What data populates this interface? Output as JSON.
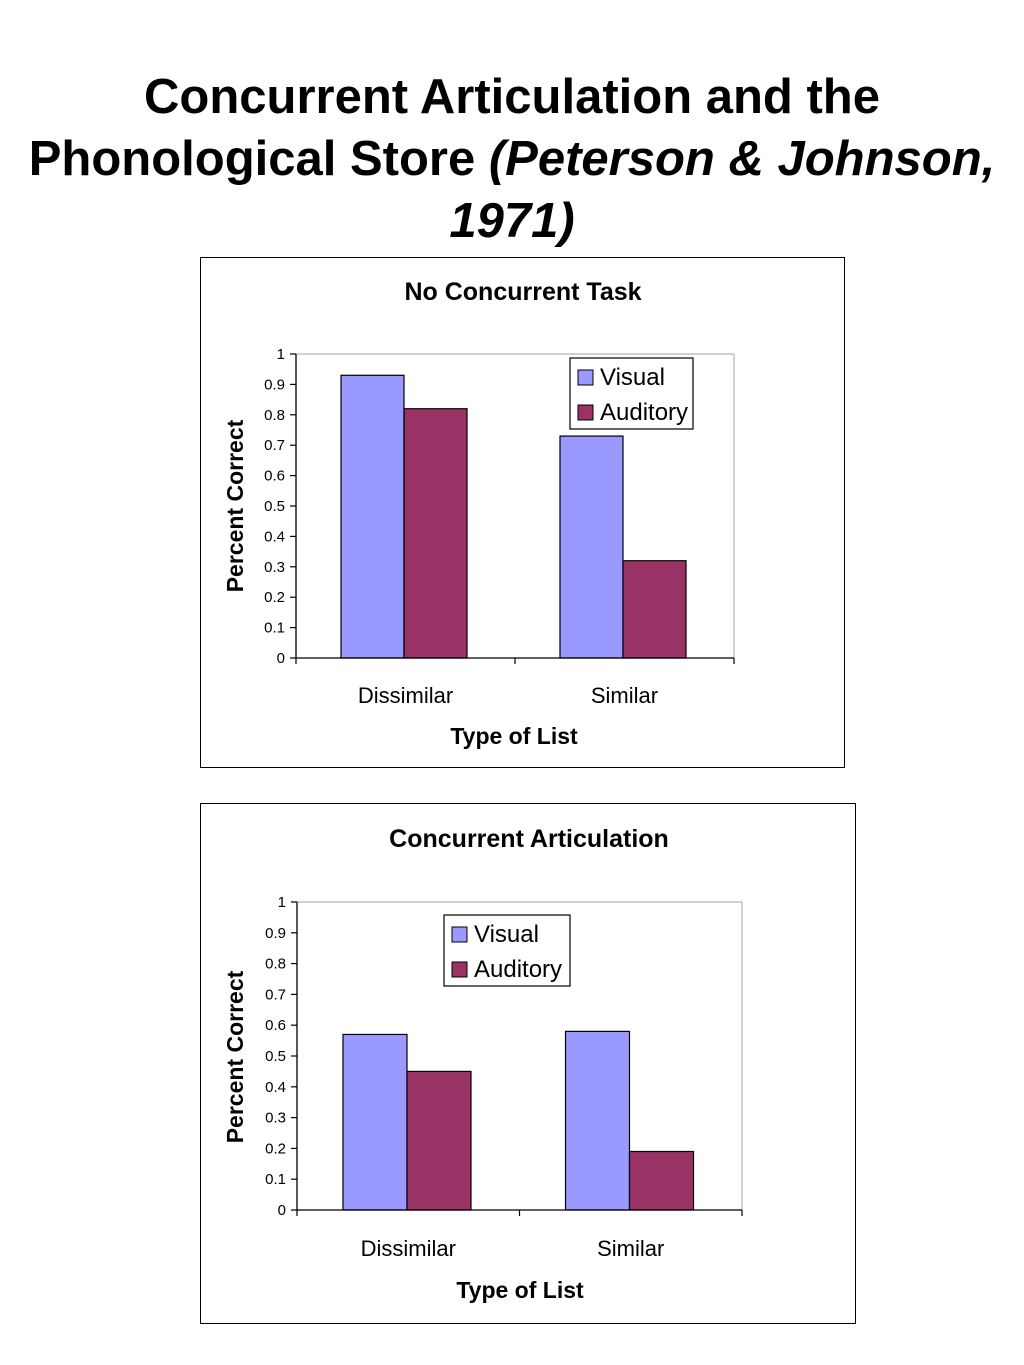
{
  "slide": {
    "title_plain": "Concurrent Articulation and the Phonological Store",
    "title_italic": "(Peterson & Johnson, 1971)"
  },
  "chart_data": [
    {
      "type": "bar",
      "title": "No Concurrent Task",
      "xlabel": "Type of List",
      "ylabel": "Percent Correct",
      "categories": [
        "Dissimilar",
        "Similar"
      ],
      "series": [
        {
          "name": "Visual",
          "values": [
            0.93,
            0.73
          ],
          "color": "#9999ff"
        },
        {
          "name": "Auditory",
          "values": [
            0.82,
            0.32
          ],
          "color": "#993366"
        }
      ],
      "ylim": [
        0,
        1
      ],
      "yticks": [
        "0",
        "0.1",
        "0.2",
        "0.3",
        "0.4",
        "0.5",
        "0.6",
        "0.7",
        "0.8",
        "0.9",
        "1"
      ],
      "legend": "top-right",
      "grid": false
    },
    {
      "type": "bar",
      "title": "Concurrent Articulation",
      "xlabel": "Type of List",
      "ylabel": "Percent Correct",
      "categories": [
        "Dissimilar",
        "Similar"
      ],
      "series": [
        {
          "name": "Visual",
          "values": [
            0.57,
            0.58
          ],
          "color": "#9999ff"
        },
        {
          "name": "Auditory",
          "values": [
            0.45,
            0.19
          ],
          "color": "#993366"
        }
      ],
      "ylim": [
        0,
        1
      ],
      "yticks": [
        "0",
        "0.1",
        "0.2",
        "0.3",
        "0.4",
        "0.5",
        "0.6",
        "0.7",
        "0.8",
        "0.9",
        "1"
      ],
      "legend": "top-center",
      "grid": false
    }
  ]
}
